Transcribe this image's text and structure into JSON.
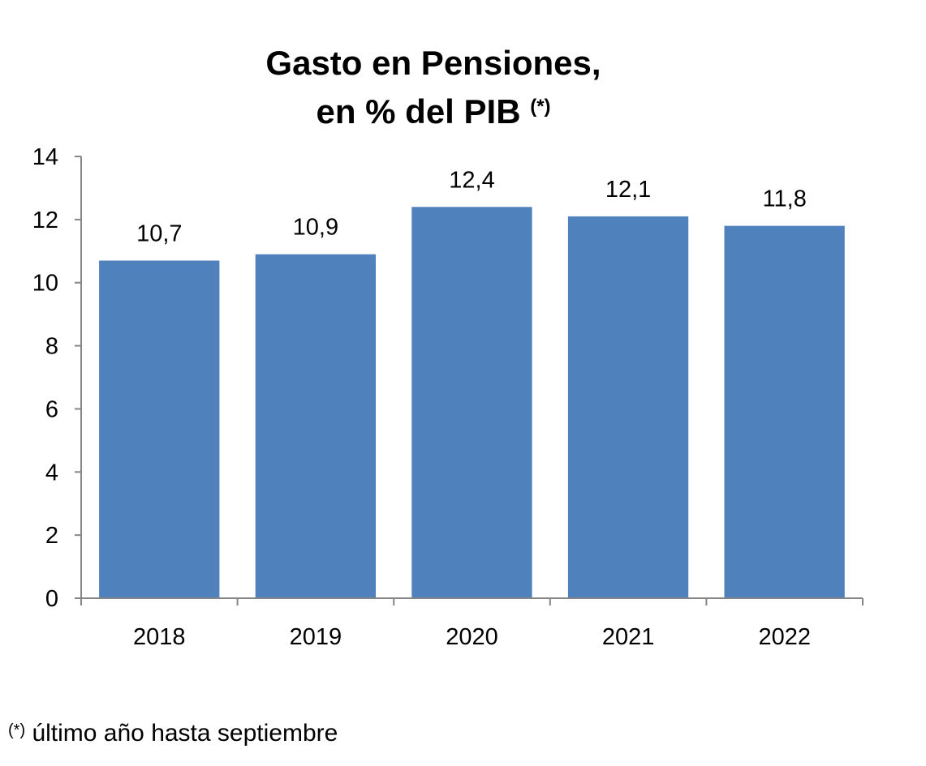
{
  "chart_data": {
    "type": "bar",
    "title_line1": "Gasto en Pensiones,",
    "title_line2": "en % del PIB",
    "title_marker": "(*)",
    "categories": [
      "2018",
      "2019",
      "2020",
      "2021",
      "2022"
    ],
    "values": [
      10.7,
      10.9,
      12.4,
      12.1,
      11.8
    ],
    "value_labels": [
      "10,7",
      "10,9",
      "12,4",
      "12,1",
      "11,8"
    ],
    "xlabel": "",
    "ylabel": "",
    "ylim": [
      0,
      14
    ],
    "yticks": [
      "0",
      "2",
      "4",
      "6",
      "8",
      "10",
      "12",
      "14"
    ],
    "grid": false,
    "bar_color": "#4f81bd"
  },
  "footnote": {
    "marker": "(*)",
    "text": " último año hasta septiembre"
  }
}
